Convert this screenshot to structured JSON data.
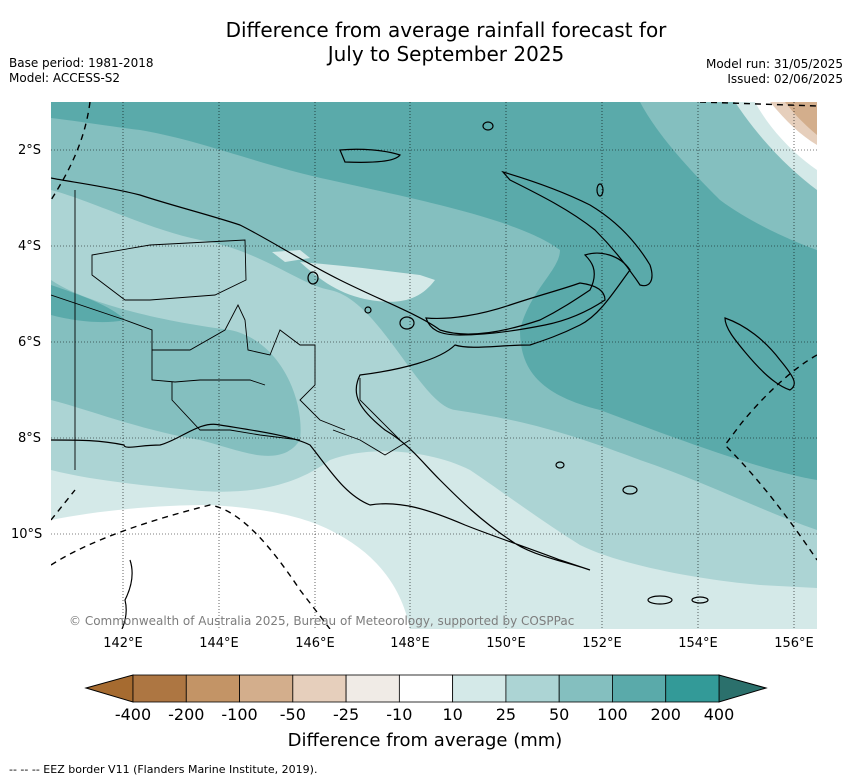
{
  "header": {
    "title_line1": "Difference from average rainfall forecast for",
    "title_line2": "July to September 2025",
    "base_period": "Base period: 1981-2018",
    "model": "Model: ACCESS-S2",
    "model_run": "Model run: 31/05/2025",
    "issued": "Issued: 02/06/2025"
  },
  "map": {
    "region": "Papua New Guinea",
    "lat_ticks": [
      "2°S",
      "4°S",
      "6°S",
      "8°S",
      "10°S"
    ],
    "lon_ticks": [
      "142°E",
      "144°E",
      "146°E",
      "148°E",
      "150°E",
      "152°E",
      "154°E",
      "156°E"
    ],
    "copyright": "© Commonwealth of Australia 2025, Bureau of Meteorology, supported by COSPPac"
  },
  "legend": {
    "ticks": [
      "-400",
      "-200",
      "-100",
      "-50",
      "-25",
      "-10",
      "10",
      "25",
      "50",
      "100",
      "200",
      "400"
    ],
    "colors": [
      "#a66b30",
      "#ad7642",
      "#c39466",
      "#d3ae8c",
      "#e6cfbc",
      "#f0ebe6",
      "#ffffff",
      "#d4e9e8",
      "#acd4d4",
      "#84bfbf",
      "#5aaaaa",
      "#339a98",
      "#2b706c"
    ],
    "label": "Difference from average (mm)"
  },
  "footer": {
    "eez_note": "-- -- -- EEZ border V11 (Flanders Marine Institute, 2019)."
  }
}
